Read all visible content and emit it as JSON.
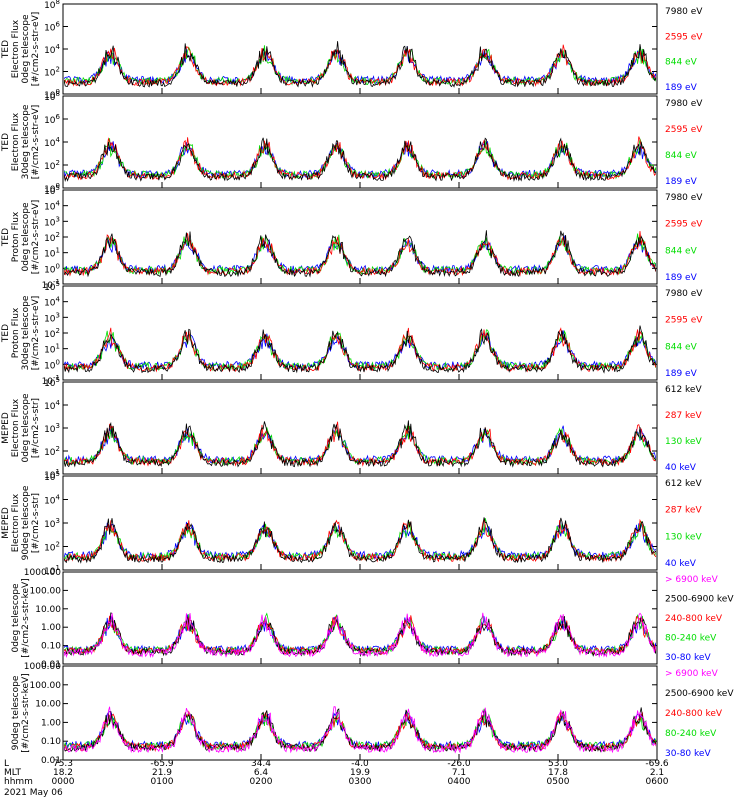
{
  "chart_data": {
    "type": "line",
    "time_labels": [
      "0000",
      "0100",
      "0200",
      "0300",
      "0400",
      "0500",
      "0600"
    ],
    "x_row_labels": [
      "L",
      "MLT",
      "hhmm"
    ],
    "latitude": [
      "75.3",
      "-65.9",
      "34.4",
      "-4.0",
      "-26.0",
      "53.0",
      "-69.6"
    ],
    "mlt": [
      "18.2",
      "21.9",
      "6.4",
      "19.9",
      "7.1",
      "17.8",
      "2.1"
    ],
    "date": "2021 May 06",
    "panels": [
      {
        "ylabel": [
          "TED",
          "Electron Flux",
          "0deg telescope",
          "[#/cm2-s-str-eV]"
        ],
        "ylog": [
          0,
          8
        ],
        "ticks": [
          0,
          2,
          4,
          6,
          8
        ],
        "series": [
          {
            "name": "7980 eV",
            "color": "#000000"
          },
          {
            "name": "2595 eV",
            "color": "#ff0000"
          },
          {
            "name": "844 eV",
            "color": "#00dd00"
          },
          {
            "name": "189 eV",
            "color": "#0000ff"
          }
        ]
      },
      {
        "ylabel": [
          "TED",
          "Electron Flux",
          "30deg telescope",
          "[#/cm2-s-str-eV]"
        ],
        "ylog": [
          0,
          8
        ],
        "ticks": [
          0,
          2,
          4,
          6,
          8
        ],
        "series": [
          {
            "name": "7980 eV",
            "color": "#000000"
          },
          {
            "name": "2595 eV",
            "color": "#ff0000"
          },
          {
            "name": "844 eV",
            "color": "#00dd00"
          },
          {
            "name": "189 eV",
            "color": "#0000ff"
          }
        ]
      },
      {
        "ylabel": [
          "TED",
          "Proton Flux",
          "0deg telescope",
          "[#/cm2-s-str-eV]"
        ],
        "ylog": [
          -1,
          5
        ],
        "ticks": [
          -1,
          0,
          1,
          2,
          3,
          4,
          5
        ],
        "series": [
          {
            "name": "7980 eV",
            "color": "#000000"
          },
          {
            "name": "2595 eV",
            "color": "#ff0000"
          },
          {
            "name": "844 eV",
            "color": "#00dd00"
          },
          {
            "name": "189 eV",
            "color": "#0000ff"
          }
        ]
      },
      {
        "ylabel": [
          "TED",
          "Proton Flux",
          "30deg telescope",
          "[#/cm2-s-str-eV]"
        ],
        "ylog": [
          -1,
          5
        ],
        "ticks": [
          -1,
          0,
          1,
          2,
          3,
          4,
          5
        ],
        "series": [
          {
            "name": "7980 eV",
            "color": "#000000"
          },
          {
            "name": "2595 eV",
            "color": "#ff0000"
          },
          {
            "name": "844 eV",
            "color": "#00dd00"
          },
          {
            "name": "189 eV",
            "color": "#0000ff"
          }
        ]
      },
      {
        "ylabel": [
          "MEPED",
          "Electron Flux",
          "0deg telescope",
          "[#/cm2-s-str]"
        ],
        "ylog": [
          1,
          5
        ],
        "ticks": [
          1,
          2,
          3,
          4,
          5
        ],
        "series": [
          {
            "name": "612 keV",
            "color": "#000000"
          },
          {
            "name": "287 keV",
            "color": "#ff0000"
          },
          {
            "name": "130 keV",
            "color": "#00dd00"
          },
          {
            "name": "40 keV",
            "color": "#0000ff"
          }
        ]
      },
      {
        "ylabel": [
          "MEPED",
          "Electron Flux",
          "90deg telescope",
          "[#/cm2-s-str]"
        ],
        "ylog": [
          1,
          5
        ],
        "ticks": [
          1,
          2,
          3,
          4,
          5
        ],
        "series": [
          {
            "name": "612 keV",
            "color": "#000000"
          },
          {
            "name": "287 keV",
            "color": "#ff0000"
          },
          {
            "name": "130 keV",
            "color": "#00dd00"
          },
          {
            "name": "40 keV",
            "color": "#0000ff"
          }
        ]
      },
      {
        "ylabel": [
          "0deg telescope",
          "[#/cm2-s-str-keV]"
        ],
        "ylog": [
          -2,
          3
        ],
        "ticks": [
          -2,
          -1,
          0,
          1,
          2,
          3
        ],
        "tick_labels": [
          "0.01",
          "0.10",
          "1.00",
          "10.00",
          "100.00",
          "1000.00"
        ],
        "series": [
          {
            "name": "> 6900 keV",
            "color": "#ff00ff"
          },
          {
            "name": "2500-6900 keV",
            "color": "#000000"
          },
          {
            "name": "240-800 keV",
            "color": "#ff0000"
          },
          {
            "name": "80-240 keV",
            "color": "#00dd00"
          },
          {
            "name": "30-80 keV",
            "color": "#0000ff"
          }
        ]
      },
      {
        "ylabel": [
          "90deg telescope",
          "[#/cm2-s-str-keV]"
        ],
        "ylog": [
          -2,
          3
        ],
        "ticks": [
          -2,
          -1,
          0,
          1,
          2,
          3
        ],
        "tick_labels": [
          "0.01",
          "0.10",
          "1.00",
          "10.00",
          "100.00",
          "1000.00"
        ],
        "series": [
          {
            "name": "> 6900 keV",
            "color": "#ff00ff"
          },
          {
            "name": "2500-6900 keV",
            "color": "#000000"
          },
          {
            "name": "240-800 keV",
            "color": "#ff0000"
          },
          {
            "name": "80-240 keV",
            "color": "#00dd00"
          },
          {
            "name": "30-80 keV",
            "color": "#0000ff"
          }
        ]
      }
    ]
  }
}
